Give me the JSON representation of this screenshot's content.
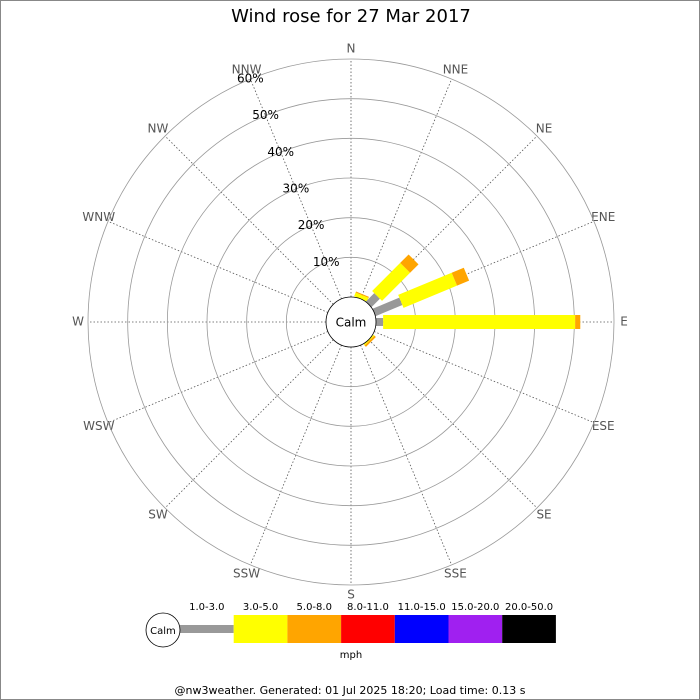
{
  "chart_data": {
    "type": "wind-rose",
    "title": "Wind rose for 27 Mar 2017",
    "categories": [
      "N",
      "NNE",
      "NE",
      "ENE",
      "E",
      "ESE",
      "SE",
      "SSE",
      "S",
      "SSW",
      "SW",
      "WSW",
      "W",
      "WNW",
      "NW",
      "NNW"
    ],
    "series": [
      {
        "name": "1.0-3.0",
        "color": "#999999",
        "values": [
          0,
          0,
          3,
          7.3,
          1.8,
          0,
          0,
          0,
          0,
          0,
          0,
          0,
          0,
          0,
          0,
          0
        ]
      },
      {
        "name": "3.0-5.0",
        "color": "#ffff00",
        "values": [
          0,
          1,
          10,
          14.6,
          48.4,
          0,
          0.3,
          0,
          0,
          0,
          0,
          0,
          0,
          0,
          0,
          0
        ]
      },
      {
        "name": "5.0-8.0",
        "color": "#ffa500",
        "values": [
          0,
          0.3,
          3,
          3.3,
          1.3,
          0,
          0.5,
          0,
          0,
          0,
          0,
          0,
          0,
          0,
          0,
          0
        ]
      },
      {
        "name": "8.0-11.0",
        "color": "#ff0000",
        "values": [
          0,
          0,
          0,
          0,
          0,
          0,
          0,
          0,
          0,
          0,
          0,
          0,
          0,
          0,
          0,
          0
        ]
      },
      {
        "name": "11.0-15.0",
        "color": "#0000ff",
        "values": [
          0,
          0,
          0,
          0,
          0,
          0,
          0,
          0,
          0,
          0,
          0,
          0,
          0,
          0,
          0,
          0
        ]
      },
      {
        "name": "15.0-20.0",
        "color": "#a020f0",
        "values": [
          0,
          0,
          0,
          0,
          0,
          0,
          0,
          0,
          0,
          0,
          0,
          0,
          0,
          0,
          0,
          0
        ]
      },
      {
        "name": "20.0-50.0",
        "color": "#000000",
        "values": [
          0,
          0,
          0,
          0,
          0,
          0,
          0,
          0,
          0,
          0,
          0,
          0,
          0,
          0,
          0,
          0
        ]
      }
    ],
    "rlim": [
      0,
      60
    ],
    "rticks": [
      {
        "value": 10,
        "label": "10%"
      },
      {
        "value": 20,
        "label": "20%"
      },
      {
        "value": 30,
        "label": "30%"
      },
      {
        "value": 40,
        "label": "40%"
      },
      {
        "value": 50,
        "label": "50%"
      },
      {
        "value": 60,
        "label": "60%"
      }
    ],
    "grid": true,
    "calm_label": "Calm",
    "legend_unit": "mph",
    "footer": "@nw3weather. Generated: 01 Jul 2025 18:20; Load time: 0.13 s"
  }
}
